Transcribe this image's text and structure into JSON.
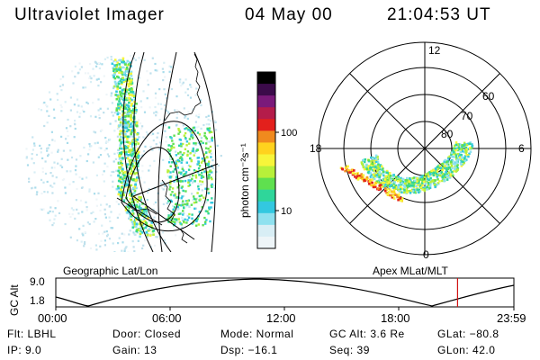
{
  "header": {
    "instrument": "Ultraviolet Imager",
    "date": "04 May 00",
    "time": "21:04:53 UT"
  },
  "colorbar": {
    "label": "photon cm⁻²s⁻¹",
    "ticks": [
      "100",
      "10"
    ],
    "colors": [
      "#000000",
      "#3b0b4a",
      "#7a1a7a",
      "#b41c4a",
      "#e3201c",
      "#f08a1e",
      "#ffd21e",
      "#f7f53a",
      "#b8f03a",
      "#5fe04f",
      "#2fd69a",
      "#33c8e0",
      "#8fe1ef",
      "#d8eef5",
      "#eef5f8"
    ]
  },
  "panels": {
    "left_label": "Geographic Lat/Lon",
    "right_label": "Apex MLat/MLT"
  },
  "polar": {
    "mlt_labels": [
      "12",
      "18",
      "6",
      "0"
    ],
    "lat_labels": [
      "60",
      "70",
      "80"
    ]
  },
  "orbit_plot": {
    "ylabel": "GC Alt",
    "yticks": [
      "9.0",
      "1.8"
    ],
    "xticks": [
      "00:00",
      "06:00",
      "12:00",
      "18:00",
      "23:59"
    ],
    "marker_time_fraction": 0.877
  },
  "status": {
    "filter": "Flt: LBHL",
    "ip": "IP:  9.0",
    "door": "Door: Closed",
    "gain": "Gain: 13",
    "mode": "Mode: Normal",
    "dsp": "Dsp:  −16.1",
    "gc_alt": "GC Alt: 3.6 Re",
    "seq": "Seq: 39",
    "glat": "GLat: −80.8",
    "glon": "GLon:  42.0"
  }
}
